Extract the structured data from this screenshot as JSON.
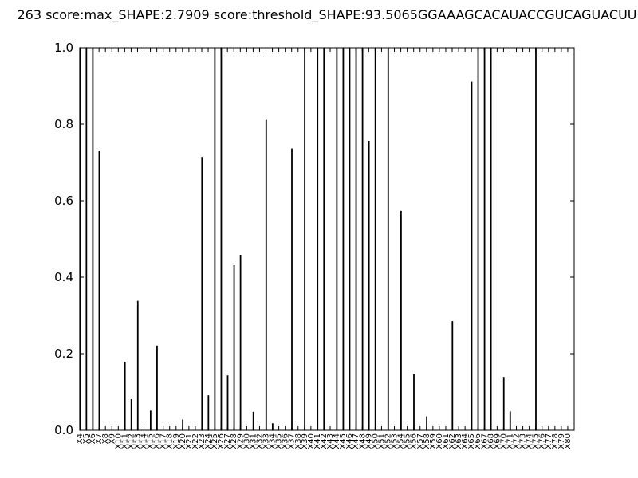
{
  "chart_data": {
    "type": "bar",
    "title": "263 score:max_SHAPE:2.7909 score:threshold_SHAPE:93.5065GGAAAGCACAUACCGUCAGUACUU",
    "categories": [
      "X4",
      "X5",
      "X6",
      "X7",
      "X8",
      "X9",
      "X10",
      "X11",
      "X12",
      "X13",
      "X14",
      "X15",
      "X16",
      "X17",
      "X18",
      "X19",
      "X20",
      "X21",
      "X22",
      "X23",
      "X24",
      "X25",
      "X26",
      "X27",
      "X28",
      "X29",
      "X30",
      "X31",
      "X32",
      "X33",
      "X34",
      "X35",
      "X36",
      "X37",
      "X38",
      "X39",
      "X40",
      "X41",
      "X42",
      "X43",
      "X44",
      "X45",
      "X46",
      "X47",
      "X48",
      "X49",
      "X50",
      "X51",
      "X52",
      "X53",
      "X54",
      "X55",
      "X56",
      "X57",
      "X58",
      "X59",
      "X60",
      "X61",
      "X62",
      "X63",
      "X64",
      "X65",
      "X66",
      "X67",
      "X68",
      "X69",
      "X70",
      "X71",
      "X72",
      "X73",
      "X74",
      "X75",
      "X76",
      "X77",
      "X78",
      "X79",
      "X80"
    ],
    "values": [
      1,
      1,
      1,
      0.73,
      0,
      0,
      0,
      0.178,
      0.08,
      0.337,
      0,
      0.05,
      0.22,
      0,
      0,
      0,
      0.027,
      0,
      0,
      0.713,
      0.09,
      1,
      1,
      0.142,
      0.43,
      0.457,
      0,
      0.047,
      0,
      0.81,
      0.017,
      0,
      0,
      0.735,
      0,
      1,
      0,
      1,
      1,
      0,
      1,
      1,
      1,
      1,
      1,
      0.755,
      1,
      0,
      1,
      0,
      0.572,
      0,
      0.145,
      0,
      0.035,
      0,
      0,
      0,
      0.284,
      0,
      0,
      0.91,
      1,
      1,
      1,
      0,
      0.138,
      0.048,
      0,
      0,
      0,
      1,
      0,
      0,
      0,
      0,
      0
    ],
    "color": "#ffffff",
    "ylim": [
      0,
      1
    ],
    "yticks": [
      {
        "value": 0,
        "label": "0.0"
      },
      0.2,
      0.4,
      0.6,
      0.8,
      {
        "value": 1,
        "label": "1.0"
      }
    ]
  }
}
